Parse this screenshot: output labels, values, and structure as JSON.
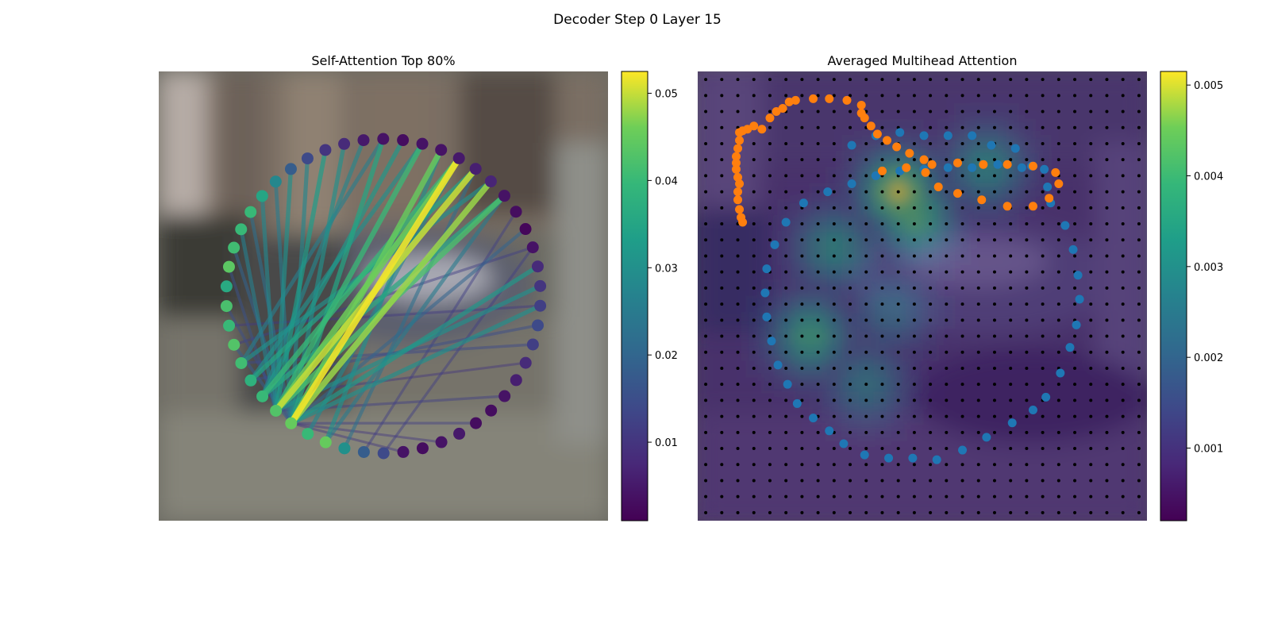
{
  "figure": {
    "title": "Decoder Step 0 Layer 15"
  },
  "chart_data": [
    {
      "type": "graph",
      "title": "Self-Attention Top 80%",
      "colormap": "viridis",
      "colorbar": {
        "min": 0.001,
        "max": 0.0525,
        "ticks": [
          0.01,
          0.02,
          0.03,
          0.04,
          0.05
        ],
        "tick_labels": [
          "0.01",
          "0.02",
          "0.03",
          "0.04",
          "0.05"
        ]
      },
      "node_count": 50,
      "node_values": [
        0.045,
        0.043,
        0.04,
        0.038,
        0.041,
        0.043,
        0.04,
        0.042,
        0.036,
        0.044,
        0.041,
        0.04,
        0.04,
        0.035,
        0.028,
        0.018,
        0.014,
        0.01,
        0.008,
        0.005,
        0.004,
        0.003,
        0.004,
        0.004,
        0.005,
        0.006,
        0.007,
        0.004,
        0.003,
        0.002,
        0.004,
        0.008,
        0.01,
        0.012,
        0.014,
        0.012,
        0.008,
        0.006,
        0.004,
        0.003,
        0.003,
        0.005,
        0.004,
        0.003,
        0.004,
        0.014,
        0.018,
        0.03,
        0.045,
        0.04
      ],
      "edges": [
        {
          "from": 0,
          "to": 24,
          "weight": 0.052
        },
        {
          "from": 0,
          "to": 26,
          "weight": 0.048
        },
        {
          "from": 0,
          "to": 23,
          "weight": 0.045
        },
        {
          "from": 0,
          "to": 20,
          "weight": 0.035
        },
        {
          "from": 0,
          "to": 18,
          "weight": 0.03
        },
        {
          "from": 0,
          "to": 16,
          "weight": 0.028
        },
        {
          "from": 0,
          "to": 14,
          "weight": 0.025
        },
        {
          "from": 0,
          "to": 12,
          "weight": 0.022
        },
        {
          "from": 0,
          "to": 10,
          "weight": 0.02
        },
        {
          "from": 0,
          "to": 31,
          "weight": 0.032
        },
        {
          "from": 0,
          "to": 33,
          "weight": 0.03
        },
        {
          "from": 1,
          "to": 25,
          "weight": 0.05
        },
        {
          "from": 1,
          "to": 24,
          "weight": 0.046
        },
        {
          "from": 1,
          "to": 27,
          "weight": 0.042
        },
        {
          "from": 1,
          "to": 17,
          "weight": 0.033
        },
        {
          "from": 1,
          "to": 15,
          "weight": 0.03
        },
        {
          "from": 1,
          "to": 13,
          "weight": 0.028
        },
        {
          "from": 1,
          "to": 11,
          "weight": 0.026
        },
        {
          "from": 1,
          "to": 22,
          "weight": 0.04
        },
        {
          "from": 1,
          "to": 32,
          "weight": 0.03
        },
        {
          "from": 2,
          "to": 24,
          "weight": 0.04
        },
        {
          "from": 2,
          "to": 27,
          "weight": 0.036
        },
        {
          "from": 2,
          "to": 21,
          "weight": 0.032
        },
        {
          "from": 2,
          "to": 19,
          "weight": 0.028
        },
        {
          "from": 3,
          "to": 25,
          "weight": 0.035
        },
        {
          "from": 3,
          "to": 22,
          "weight": 0.03
        },
        {
          "from": 4,
          "to": 26,
          "weight": 0.03
        },
        {
          "from": 4,
          "to": 20,
          "weight": 0.026
        },
        {
          "from": 48,
          "to": 23,
          "weight": 0.03
        },
        {
          "from": 48,
          "to": 27,
          "weight": 0.025
        },
        {
          "from": 49,
          "to": 24,
          "weight": 0.028
        },
        {
          "from": 47,
          "to": 25,
          "weight": 0.022
        },
        {
          "from": 0,
          "to": 5,
          "weight": 0.018
        },
        {
          "from": 0,
          "to": 7,
          "weight": 0.015
        },
        {
          "from": 1,
          "to": 9,
          "weight": 0.016
        },
        {
          "from": 0,
          "to": 40,
          "weight": 0.012
        },
        {
          "from": 0,
          "to": 42,
          "weight": 0.01
        },
        {
          "from": 0,
          "to": 44,
          "weight": 0.01
        },
        {
          "from": 1,
          "to": 38,
          "weight": 0.012
        },
        {
          "from": 2,
          "to": 36,
          "weight": 0.01
        },
        {
          "from": 0,
          "to": 29,
          "weight": 0.02
        },
        {
          "from": 45,
          "to": 30,
          "weight": 0.012
        },
        {
          "from": 46,
          "to": 28,
          "weight": 0.012
        },
        {
          "from": 3,
          "to": 34,
          "weight": 0.015
        },
        {
          "from": 4,
          "to": 35,
          "weight": 0.014
        },
        {
          "from": 5,
          "to": 30,
          "weight": 0.012
        },
        {
          "from": 6,
          "to": 33,
          "weight": 0.011
        }
      ]
    },
    {
      "type": "heatmap",
      "title": "Averaged Multihead Attention",
      "colormap": "viridis",
      "colorbar": {
        "min": 0.0002,
        "max": 0.00515,
        "ticks": [
          0.001,
          0.002,
          0.003,
          0.004,
          0.005
        ],
        "tick_labels": [
          "0.001",
          "0.002",
          "0.003",
          "0.004",
          "0.005"
        ]
      },
      "grid": {
        "rows": 28,
        "cols": 28
      },
      "hotspots": [
        {
          "row": 7.5,
          "col": 12.5,
          "value": 0.0051
        },
        {
          "row": 9.0,
          "col": 13.5,
          "value": 0.0043
        },
        {
          "row": 16.5,
          "col": 7.0,
          "value": 0.004
        },
        {
          "row": 11.0,
          "col": 8.5,
          "value": 0.0034
        },
        {
          "row": 6.0,
          "col": 18.0,
          "value": 0.0033
        },
        {
          "row": 19.5,
          "col": 10.5,
          "value": 0.0028
        },
        {
          "row": 15.0,
          "col": 12.0,
          "value": 0.0024
        }
      ],
      "background_value": 0.0008,
      "reference_points": {
        "name": "blue",
        "color": "#1f77b4",
        "points": [
          [
            9.6,
            4.6
          ],
          [
            11.1,
            4.0
          ],
          [
            12.6,
            3.8
          ],
          [
            14.1,
            4.0
          ],
          [
            15.6,
            4.0
          ],
          [
            17.1,
            4.0
          ],
          [
            18.3,
            4.6
          ],
          [
            19.8,
            4.8
          ],
          [
            20.8,
            5.9
          ],
          [
            21.8,
            7.2
          ],
          [
            22.0,
            8.2
          ],
          [
            22.9,
            9.6
          ],
          [
            23.4,
            11.1
          ],
          [
            23.7,
            12.7
          ],
          [
            23.8,
            14.2
          ],
          [
            23.6,
            15.8
          ],
          [
            23.2,
            17.2
          ],
          [
            22.6,
            18.8
          ],
          [
            21.7,
            20.3
          ],
          [
            20.9,
            21.1
          ],
          [
            19.6,
            21.9
          ],
          [
            18.0,
            22.8
          ],
          [
            16.5,
            23.6
          ],
          [
            14.9,
            24.2
          ],
          [
            13.4,
            24.1
          ],
          [
            11.9,
            24.1
          ],
          [
            10.4,
            23.9
          ],
          [
            9.1,
            23.2
          ],
          [
            8.2,
            22.4
          ],
          [
            7.2,
            21.6
          ],
          [
            6.2,
            20.7
          ],
          [
            5.6,
            19.5
          ],
          [
            5.0,
            18.3
          ],
          [
            4.6,
            16.8
          ],
          [
            4.3,
            15.3
          ],
          [
            4.2,
            13.8
          ],
          [
            4.3,
            12.3
          ],
          [
            4.8,
            10.8
          ],
          [
            5.5,
            9.4
          ],
          [
            6.6,
            8.2
          ],
          [
            8.1,
            7.5
          ],
          [
            9.6,
            7.0
          ],
          [
            11.1,
            6.5
          ],
          [
            12.6,
            6.2
          ],
          [
            14.1,
            6.1
          ],
          [
            15.6,
            6.0
          ],
          [
            17.1,
            6.0
          ],
          [
            18.7,
            5.8
          ],
          [
            20.2,
            6.0
          ],
          [
            21.6,
            6.1
          ]
        ]
      },
      "predicted_points": {
        "name": "orange",
        "color": "#ff7f0e",
        "points": [
          [
            11.5,
            6.2
          ],
          [
            13.0,
            6.0
          ],
          [
            14.6,
            5.8
          ],
          [
            16.2,
            5.7
          ],
          [
            17.8,
            5.8
          ],
          [
            19.3,
            5.8
          ],
          [
            20.9,
            5.9
          ],
          [
            22.3,
            6.3
          ],
          [
            22.5,
            7.0
          ],
          [
            21.9,
            7.9
          ],
          [
            20.9,
            8.4
          ],
          [
            19.3,
            8.4
          ],
          [
            17.7,
            8.0
          ],
          [
            16.2,
            7.6
          ],
          [
            15.0,
            7.2
          ],
          [
            14.2,
            6.3
          ],
          [
            14.1,
            5.5
          ],
          [
            13.2,
            5.1
          ],
          [
            12.4,
            4.7
          ],
          [
            11.8,
            4.3
          ],
          [
            11.2,
            3.9
          ],
          [
            10.8,
            3.4
          ],
          [
            10.4,
            2.9
          ],
          [
            10.2,
            2.6
          ],
          [
            10.2,
            2.1
          ],
          [
            9.3,
            1.8
          ],
          [
            8.2,
            1.7
          ],
          [
            7.2,
            1.7
          ],
          [
            6.1,
            1.8
          ],
          [
            5.7,
            1.9
          ],
          [
            5.3,
            2.3
          ],
          [
            4.9,
            2.5
          ],
          [
            4.5,
            2.9
          ],
          [
            4.0,
            3.6
          ],
          [
            3.5,
            3.4
          ],
          [
            3.1,
            3.6
          ],
          [
            2.8,
            3.7
          ],
          [
            2.6,
            3.8
          ],
          [
            2.6,
            4.3
          ],
          [
            2.5,
            4.8
          ],
          [
            2.4,
            5.3
          ],
          [
            2.4,
            5.7
          ],
          [
            2.4,
            6.1
          ],
          [
            2.5,
            6.6
          ],
          [
            2.6,
            7.0
          ],
          [
            2.5,
            7.5
          ],
          [
            2.5,
            8.0
          ],
          [
            2.6,
            8.6
          ],
          [
            2.7,
            9.1
          ],
          [
            2.8,
            9.4
          ]
        ]
      }
    }
  ]
}
